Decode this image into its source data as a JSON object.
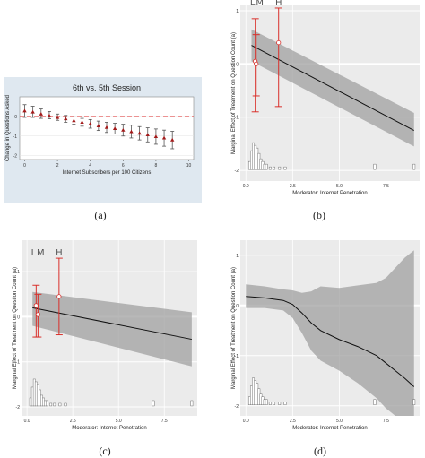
{
  "captions": [
    "(a)",
    "(b)",
    "(c)",
    "(d)"
  ],
  "chart_data": [
    {
      "type": "scatter",
      "panel": "a",
      "title": "6th vs. 5th Session",
      "xlabel": "Internet Subscribers per 100 Citizens",
      "ylabel": "Change in Questions Asked",
      "xlim": [
        -0.3,
        10.3
      ],
      "ylim": [
        -2.2,
        1.0
      ],
      "xticks": [
        0,
        2,
        4,
        6,
        8,
        10
      ],
      "yticks": [
        -2,
        -1,
        0
      ],
      "x": [
        0,
        0.5,
        1,
        1.5,
        2,
        2.5,
        3,
        3.5,
        4,
        4.5,
        5,
        5.5,
        6,
        6.5,
        7,
        7.5,
        8,
        8.5,
        9
      ],
      "y": [
        0.28,
        0.22,
        0.12,
        0.04,
        -0.05,
        -0.12,
        -0.22,
        -0.3,
        -0.38,
        -0.48,
        -0.56,
        -0.62,
        -0.7,
        -0.78,
        -0.86,
        -0.94,
        -1.03,
        -1.1,
        -1.2
      ],
      "ci_low": [
        -0.05,
        -0.05,
        -0.1,
        -0.12,
        -0.2,
        -0.3,
        -0.4,
        -0.5,
        -0.6,
        -0.72,
        -0.82,
        -0.9,
        -1.0,
        -1.1,
        -1.2,
        -1.3,
        -1.42,
        -1.52,
        -1.65
      ],
      "ci_high": [
        0.6,
        0.52,
        0.38,
        0.25,
        0.12,
        0.05,
        -0.02,
        -0.1,
        -0.16,
        -0.24,
        -0.3,
        -0.35,
        -0.4,
        -0.45,
        -0.52,
        -0.58,
        -0.64,
        -0.7,
        -0.76
      ],
      "reference_line": 0,
      "colors": {
        "points": "#a31a1a",
        "bars": "#555555",
        "ref": "#e05050",
        "bg": "#dfe8f0"
      }
    },
    {
      "type": "line",
      "panel": "b",
      "xlabel": "Moderator: Internet Penetration",
      "ylabel": "Marginal Effect of Treatment on Question Count (a)",
      "xlim": [
        -0.3,
        9.3
      ],
      "ylim": [
        -2.2,
        1.1
      ],
      "xticks": [
        0.0,
        2.5,
        5.0,
        7.5
      ],
      "xtick_labels": [
        "0.0",
        "2.5",
        "5.0",
        "7.5"
      ],
      "yticks": [
        -2,
        -1,
        0,
        1
      ],
      "line": {
        "x": [
          0.3,
          9.0
        ],
        "y": [
          0.35,
          -1.25
        ]
      },
      "band": {
        "x": [
          0.3,
          9.0
        ],
        "low": [
          0.05,
          -1.55
        ],
        "high": [
          0.65,
          -0.92
        ]
      },
      "bins": [
        {
          "label": "L",
          "x": 0.5,
          "y": 0.05,
          "low": -0.9,
          "high": 0.85
        },
        {
          "label": "M",
          "x": 0.55,
          "y": 0.0,
          "low": -0.6,
          "high": 0.55
        },
        {
          "label": "H",
          "x": 1.75,
          "y": 0.4,
          "low": -0.8,
          "high": 1.05
        }
      ],
      "bin_labels": [
        "L",
        "M",
        "H"
      ],
      "histogram": {
        "x": [
          0.2,
          0.3,
          0.4,
          0.5,
          0.6,
          0.7,
          0.8,
          0.9,
          1.0,
          1.1,
          1.3,
          1.5,
          1.8,
          2.1,
          6.9,
          9.0
        ],
        "counts": [
          3,
          7,
          10,
          9,
          8,
          6,
          4,
          3,
          2,
          2,
          1,
          1,
          1,
          1,
          2,
          2
        ]
      },
      "colors": {
        "line": "#111111",
        "band": "#a0a0a0",
        "bins": "#d9302b",
        "bg": "#ebebeb"
      }
    },
    {
      "type": "line",
      "panel": "c",
      "xlabel": "Moderator: Internet Penetration",
      "ylabel": "Marginal Effect of Treatment on Question Count (a)",
      "xlim": [
        -0.3,
        9.3
      ],
      "ylim": [
        -2.2,
        1.7
      ],
      "xticks": [
        0.0,
        2.5,
        5.0,
        7.5
      ],
      "xtick_labels": [
        "0.0",
        "2.5",
        "5.0",
        "7.5"
      ],
      "yticks": [
        -2,
        -1,
        0,
        1
      ],
      "line": {
        "x": [
          0.3,
          9.0
        ],
        "y": [
          0.2,
          -0.5
        ]
      },
      "band": {
        "x": [
          0.3,
          9.0
        ],
        "low": [
          -0.2,
          -1.1
        ],
        "high": [
          0.55,
          0.1
        ]
      },
      "bins": [
        {
          "label": "L",
          "x": 0.5,
          "y": 0.25,
          "low": -0.45,
          "high": 0.7
        },
        {
          "label": "M",
          "x": 0.6,
          "y": 0.05,
          "low": -0.45,
          "high": 0.5
        },
        {
          "label": "H",
          "x": 1.75,
          "y": 0.45,
          "low": -0.4,
          "high": 1.3
        }
      ],
      "bin_labels": [
        "L",
        "M",
        "H"
      ],
      "histogram": {
        "x": [
          0.2,
          0.3,
          0.4,
          0.5,
          0.6,
          0.7,
          0.8,
          0.9,
          1.0,
          1.1,
          1.3,
          1.5,
          1.8,
          2.1,
          6.9,
          9.0
        ],
        "counts": [
          3,
          7,
          10,
          9,
          8,
          6,
          4,
          3,
          2,
          2,
          1,
          1,
          1,
          1,
          2,
          2
        ]
      },
      "colors": {
        "line": "#111111",
        "band": "#a0a0a0",
        "bins": "#d9302b",
        "bg": "#ebebeb"
      }
    },
    {
      "type": "line",
      "panel": "d",
      "xlabel": "Moderator: Internet Penetration",
      "ylabel": "Marginal Effect of Treatment on Question Count (a)",
      "xlim": [
        -0.3,
        9.3
      ],
      "ylim": [
        -2.2,
        1.3
      ],
      "xticks": [
        0.0,
        2.5,
        5.0,
        7.5
      ],
      "xtick_labels": [
        "0.0",
        "2.5",
        "5.0",
        "7.5"
      ],
      "yticks": [
        -2,
        -1,
        0,
        1
      ],
      "line": {
        "x": [
          0.0,
          1.0,
          2.0,
          2.5,
          3.0,
          3.5,
          4.0,
          5.0,
          6.0,
          7.0,
          7.5,
          8.0,
          8.5,
          9.0
        ],
        "y": [
          0.18,
          0.15,
          0.1,
          0.02,
          -0.15,
          -0.35,
          -0.5,
          -0.68,
          -0.82,
          -1.0,
          -1.15,
          -1.3,
          -1.45,
          -1.62
        ]
      },
      "band": {
        "x": [
          0.0,
          1.0,
          2.0,
          2.5,
          3.0,
          3.5,
          4.0,
          5.0,
          6.0,
          7.0,
          7.5,
          8.0,
          8.5,
          9.0
        ],
        "low": [
          -0.05,
          -0.05,
          -0.1,
          -0.25,
          -0.55,
          -0.9,
          -1.1,
          -1.3,
          -1.55,
          -1.85,
          -2.05,
          -2.2,
          -2.2,
          -2.2
        ],
        "high": [
          0.42,
          0.38,
          0.32,
          0.3,
          0.25,
          0.28,
          0.38,
          0.35,
          0.4,
          0.45,
          0.55,
          0.75,
          0.95,
          1.1
        ]
      },
      "histogram": {
        "x": [
          0.2,
          0.3,
          0.4,
          0.5,
          0.6,
          0.7,
          0.8,
          0.9,
          1.0,
          1.1,
          1.3,
          1.5,
          1.8,
          2.1,
          6.9,
          9.0
        ],
        "counts": [
          3,
          7,
          10,
          9,
          8,
          6,
          4,
          3,
          2,
          2,
          1,
          1,
          1,
          1,
          2,
          2
        ]
      },
      "colors": {
        "line": "#111111",
        "band": "#a0a0a0",
        "bg": "#ebebeb"
      }
    }
  ]
}
